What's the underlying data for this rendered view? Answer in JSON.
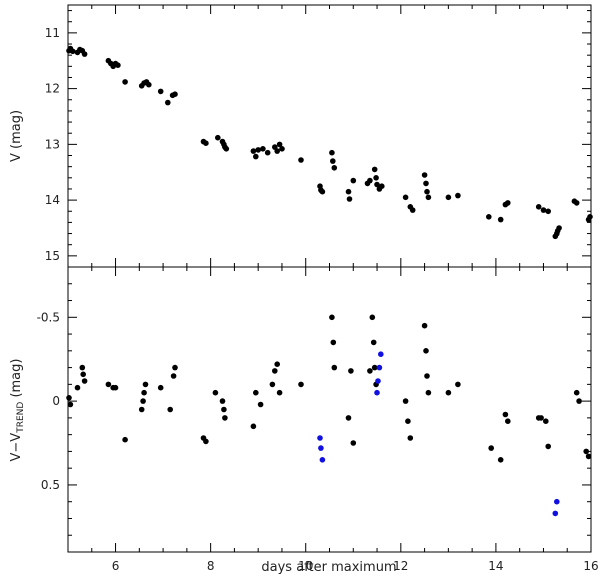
{
  "figure": {
    "xlabel": "days after maximum",
    "xlim": [
      5,
      16
    ],
    "xticks": [
      6,
      8,
      10,
      12,
      14,
      16
    ],
    "shared_x": true
  },
  "chart_data": [
    {
      "type": "scatter",
      "panel": "top",
      "title": "",
      "ylabel": "V (mag)",
      "ylim": [
        15.2,
        10.5
      ],
      "y_inverted": true,
      "yticks": [
        11,
        12,
        13,
        14,
        15
      ],
      "grid": false,
      "series": [
        {
          "color": "#000000",
          "points": [
            [
              5.02,
              11.32
            ],
            [
              5.05,
              11.28
            ],
            [
              5.1,
              11.33
            ],
            [
              5.2,
              11.35
            ],
            [
              5.25,
              11.3
            ],
            [
              5.3,
              11.32
            ],
            [
              5.35,
              11.38
            ],
            [
              5.85,
              11.5
            ],
            [
              5.9,
              11.55
            ],
            [
              5.95,
              11.6
            ],
            [
              6.0,
              11.55
            ],
            [
              6.05,
              11.58
            ],
            [
              6.2,
              11.88
            ],
            [
              6.55,
              11.95
            ],
            [
              6.6,
              11.9
            ],
            [
              6.65,
              11.88
            ],
            [
              6.7,
              11.93
            ],
            [
              6.95,
              12.05
            ],
            [
              7.1,
              12.25
            ],
            [
              7.2,
              12.12
            ],
            [
              7.25,
              12.1
            ],
            [
              7.85,
              12.95
            ],
            [
              7.9,
              12.98
            ],
            [
              8.15,
              12.88
            ],
            [
              8.25,
              12.95
            ],
            [
              8.28,
              13.0
            ],
            [
              8.3,
              13.05
            ],
            [
              8.33,
              13.08
            ],
            [
              8.9,
              13.12
            ],
            [
              8.95,
              13.22
            ],
            [
              9.0,
              13.1
            ],
            [
              9.1,
              13.08
            ],
            [
              9.2,
              13.15
            ],
            [
              9.35,
              13.05
            ],
            [
              9.4,
              13.12
            ],
            [
              9.45,
              13.0
            ],
            [
              9.5,
              13.08
            ],
            [
              9.9,
              13.28
            ],
            [
              10.3,
              13.75
            ],
            [
              10.32,
              13.82
            ],
            [
              10.35,
              13.85
            ],
            [
              10.55,
              13.15
            ],
            [
              10.57,
              13.3
            ],
            [
              10.6,
              13.42
            ],
            [
              10.9,
              13.85
            ],
            [
              10.92,
              13.98
            ],
            [
              11.0,
              13.65
            ],
            [
              11.3,
              13.7
            ],
            [
              11.35,
              13.65
            ],
            [
              11.45,
              13.45
            ],
            [
              11.48,
              13.6
            ],
            [
              11.5,
              13.72
            ],
            [
              11.55,
              13.8
            ],
            [
              11.6,
              13.75
            ],
            [
              12.1,
              13.95
            ],
            [
              12.2,
              14.12
            ],
            [
              12.25,
              14.18
            ],
            [
              12.5,
              13.55
            ],
            [
              12.53,
              13.7
            ],
            [
              12.55,
              13.85
            ],
            [
              12.58,
              13.95
            ],
            [
              13.0,
              13.95
            ],
            [
              13.2,
              13.92
            ],
            [
              13.85,
              14.3
            ],
            [
              14.1,
              14.35
            ],
            [
              14.2,
              14.08
            ],
            [
              14.25,
              14.05
            ],
            [
              14.9,
              14.12
            ],
            [
              15.0,
              14.18
            ],
            [
              15.1,
              14.2
            ],
            [
              15.25,
              14.65
            ],
            [
              15.28,
              14.6
            ],
            [
              15.3,
              14.55
            ],
            [
              15.33,
              14.5
            ],
            [
              15.65,
              14.02
            ],
            [
              15.7,
              14.05
            ],
            [
              15.95,
              14.35
            ],
            [
              15.98,
              14.3
            ]
          ]
        }
      ]
    },
    {
      "type": "scatter",
      "panel": "bottom",
      "title": "",
      "ylabel": "V−V",
      "ylabel_subscript": "TREND",
      "ylabel_suffix": " (mag)",
      "ylim": [
        0.9,
        -0.8
      ],
      "y_inverted": true,
      "yticks": [
        -0.5,
        0,
        0.5
      ],
      "grid": false,
      "series": [
        {
          "color": "#000000",
          "points": [
            [
              5.02,
              -0.02
            ],
            [
              5.05,
              0.02
            ],
            [
              5.2,
              -0.08
            ],
            [
              5.3,
              -0.2
            ],
            [
              5.32,
              -0.16
            ],
            [
              5.35,
              -0.12
            ],
            [
              5.85,
              -0.1
            ],
            [
              5.95,
              -0.08
            ],
            [
              6.0,
              -0.08
            ],
            [
              6.2,
              0.23
            ],
            [
              6.55,
              0.05
            ],
            [
              6.58,
              0.0
            ],
            [
              6.6,
              -0.05
            ],
            [
              6.63,
              -0.1
            ],
            [
              6.95,
              -0.08
            ],
            [
              7.15,
              0.05
            ],
            [
              7.22,
              -0.15
            ],
            [
              7.25,
              -0.2
            ],
            [
              7.85,
              0.22
            ],
            [
              7.9,
              0.24
            ],
            [
              8.1,
              -0.05
            ],
            [
              8.25,
              0.0
            ],
            [
              8.28,
              0.05
            ],
            [
              8.3,
              0.1
            ],
            [
              8.9,
              0.15
            ],
            [
              8.95,
              -0.05
            ],
            [
              9.05,
              0.02
            ],
            [
              9.3,
              -0.1
            ],
            [
              9.35,
              -0.18
            ],
            [
              9.4,
              -0.22
            ],
            [
              9.45,
              -0.05
            ],
            [
              9.9,
              -0.1
            ],
            [
              10.55,
              -0.5
            ],
            [
              10.58,
              -0.35
            ],
            [
              10.6,
              -0.2
            ],
            [
              10.9,
              0.1
            ],
            [
              10.95,
              -0.18
            ],
            [
              11.0,
              0.25
            ],
            [
              11.35,
              -0.18
            ],
            [
              11.4,
              -0.5
            ],
            [
              11.43,
              -0.35
            ],
            [
              11.45,
              -0.2
            ],
            [
              11.48,
              -0.1
            ],
            [
              12.1,
              0.0
            ],
            [
              12.15,
              0.12
            ],
            [
              12.2,
              0.22
            ],
            [
              12.5,
              -0.45
            ],
            [
              12.53,
              -0.3
            ],
            [
              12.55,
              -0.15
            ],
            [
              12.58,
              -0.05
            ],
            [
              13.0,
              -0.05
            ],
            [
              13.2,
              -0.1
            ],
            [
              13.9,
              0.28
            ],
            [
              14.1,
              0.35
            ],
            [
              14.2,
              0.08
            ],
            [
              14.25,
              0.12
            ],
            [
              14.9,
              0.1
            ],
            [
              14.95,
              0.1
            ],
            [
              15.05,
              0.12
            ],
            [
              15.1,
              0.27
            ],
            [
              15.7,
              -0.05
            ],
            [
              15.75,
              0.0
            ],
            [
              15.9,
              0.3
            ],
            [
              15.95,
              0.33
            ]
          ]
        },
        {
          "color": "#1010e0",
          "points": [
            [
              10.3,
              0.22
            ],
            [
              10.32,
              0.28
            ],
            [
              10.35,
              0.35
            ],
            [
              11.5,
              -0.05
            ],
            [
              11.52,
              -0.12
            ],
            [
              11.55,
              -0.2
            ],
            [
              11.58,
              -0.28
            ],
            [
              15.25,
              0.67
            ],
            [
              15.28,
              0.6
            ]
          ]
        }
      ]
    }
  ]
}
